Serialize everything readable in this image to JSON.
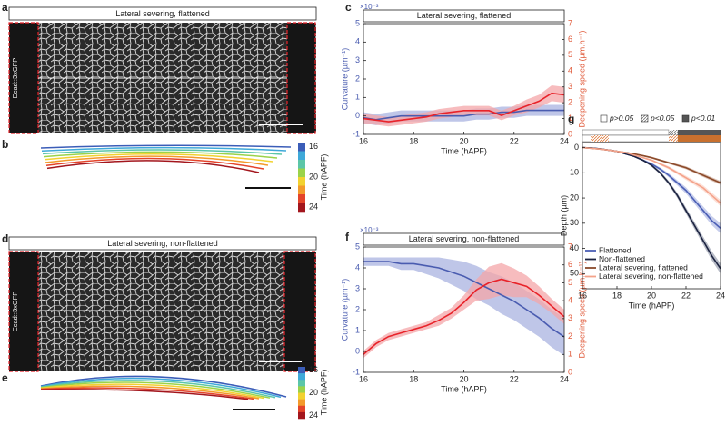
{
  "panels": {
    "a": {
      "label": "a",
      "title": "Lateral severing, flattened",
      "side_label": "Ecad::3xGFP"
    },
    "b": {
      "label": "b",
      "colorbar_label": "Time (hAPF)",
      "colorbar_ticks": [
        16,
        20,
        24
      ]
    },
    "d": {
      "label": "d",
      "title": "Lateral severing, non-flattened",
      "side_label": "Ecad::3xGFP"
    },
    "e": {
      "label": "e",
      "colorbar_label": "Time (hAPF)",
      "colorbar_ticks": [
        16,
        20,
        24
      ]
    }
  },
  "chart_data": [
    {
      "label": "c",
      "type": "line",
      "title": "Lateral severing, flattened",
      "x": [
        16,
        16.5,
        17,
        17.5,
        18,
        18.5,
        19,
        19.5,
        20,
        20.5,
        21,
        21.5,
        22,
        22.5,
        23,
        23.5,
        24
      ],
      "xlim": [
        16,
        24
      ],
      "xticks": [
        16,
        18,
        20,
        22,
        24
      ],
      "xlabel": "Time (hAPF)",
      "ylabel": "Curvature (µm⁻¹)",
      "y_multiplier": "×10⁻³",
      "ylim": [
        -1,
        5
      ],
      "yticks": [
        -1,
        0,
        1,
        2,
        3,
        4,
        5
      ],
      "y2label": "Deepening speed (µm.h⁻¹)",
      "y2lim": [
        0,
        7
      ],
      "y2ticks": [
        0,
        1,
        2,
        3,
        4,
        5,
        6,
        7
      ],
      "series": [
        {
          "color": "#4a5cb0",
          "band_color": "#aab3e0",
          "axis": "y",
          "values": [
            -0.1,
            -0.2,
            -0.1,
            0,
            0,
            0,
            0,
            0,
            0,
            0.1,
            0.1,
            0.2,
            0.2,
            0.3,
            0.3,
            0.3,
            0.3
          ],
          "errors": [
            0.3,
            0.3,
            0.3,
            0.3,
            0.3,
            0.3,
            0.3,
            0.3,
            0.3,
            0.3,
            0.3,
            0.3,
            0.3,
            0.3,
            0.3,
            0.3,
            0.3
          ]
        },
        {
          "color": "#e8232a",
          "band_color": "#f4a6a8",
          "axis": "y2",
          "values": [
            1.0,
            0.9,
            0.8,
            0.9,
            1.0,
            1.1,
            1.3,
            1.4,
            1.5,
            1.5,
            1.5,
            1.2,
            1.5,
            1.8,
            2.1,
            2.6,
            2.5
          ],
          "errors": [
            0.3,
            0.3,
            0.3,
            0.3,
            0.3,
            0.3,
            0.3,
            0.3,
            0.3,
            0.3,
            0.3,
            0.3,
            0.3,
            0.4,
            0.4,
            0.5,
            0.5
          ]
        }
      ]
    },
    {
      "label": "f",
      "type": "line",
      "title": "Lateral severing, non-flattened",
      "x": [
        16,
        16.5,
        17,
        17.5,
        18,
        18.5,
        19,
        19.5,
        20,
        20.5,
        21,
        21.5,
        22,
        22.5,
        23,
        23.5,
        24
      ],
      "xlim": [
        16,
        24
      ],
      "xticks": [
        16,
        18,
        20,
        22,
        24
      ],
      "xlabel": "Time (hAPF)",
      "ylabel": "Curvature (µm⁻¹)",
      "y_multiplier": "×10⁻³",
      "ylim": [
        -1,
        5
      ],
      "yticks": [
        -1,
        0,
        1,
        2,
        3,
        4,
        5
      ],
      "y2label": "Deepening speed (µm.h⁻¹)",
      "y2lim": [
        0,
        7
      ],
      "y2ticks": [
        0,
        1,
        2,
        3,
        4,
        5,
        6,
        7
      ],
      "series": [
        {
          "color": "#4a5cb0",
          "band_color": "#aab3e0",
          "axis": "y",
          "values": [
            4.3,
            4.3,
            4.3,
            4.2,
            4.2,
            4.1,
            4.0,
            3.8,
            3.6,
            3.3,
            3.0,
            2.7,
            2.4,
            2.0,
            1.6,
            1.1,
            0.7
          ],
          "errors": [
            0.2,
            0.2,
            0.2,
            0.3,
            0.3,
            0.4,
            0.5,
            0.6,
            0.7,
            0.8,
            0.8,
            0.9,
            0.9,
            0.9,
            0.9,
            0.9,
            0.9
          ]
        },
        {
          "color": "#e8232a",
          "band_color": "#f4a6a8",
          "axis": "y2",
          "values": [
            1.0,
            1.6,
            2.0,
            2.2,
            2.4,
            2.6,
            2.9,
            3.3,
            3.9,
            4.6,
            5.0,
            5.2,
            5.0,
            4.8,
            4.3,
            3.7,
            3.1
          ],
          "errors": [
            0.2,
            0.2,
            0.2,
            0.2,
            0.2,
            0.2,
            0.3,
            0.3,
            0.4,
            0.6,
            0.9,
            0.9,
            0.8,
            0.6,
            0.5,
            0.4,
            0.4
          ]
        }
      ]
    },
    {
      "label": "g",
      "type": "line",
      "significance_labels": [
        "p>0.05",
        "p<0.05",
        "p<0.01"
      ],
      "x": [
        16,
        16.5,
        17,
        17.5,
        18,
        18.5,
        19,
        19.5,
        20,
        20.5,
        21,
        21.5,
        22,
        22.5,
        23,
        23.5,
        24
      ],
      "xlim": [
        16,
        24
      ],
      "xticks": [
        16,
        18,
        20,
        22,
        24
      ],
      "xlabel": "Time (hAPF)",
      "ylabel": "Depth (µm)",
      "ylim": [
        -2,
        56
      ],
      "y_inverted": true,
      "yticks": [
        0,
        10,
        20,
        30,
        40,
        50
      ],
      "legend": "lower left",
      "series": [
        {
          "name": "Flattened",
          "color": "#4b5fb5",
          "band_color": "#b4bde6",
          "axis": "y",
          "values": [
            0,
            0.2,
            0.5,
            1,
            1.5,
            2.5,
            3.5,
            5,
            6.5,
            8.5,
            11,
            14,
            17,
            21,
            25,
            29,
            32
          ],
          "errors": [
            0,
            0,
            0.1,
            0.1,
            0.2,
            0.2,
            0.3,
            0.4,
            0.5,
            0.6,
            0.8,
            1,
            1.2,
            1.4,
            1.6,
            1.8,
            2
          ]
        },
        {
          "name": "Non-flattened",
          "color": "#1c2340",
          "band_color": "#a0a6b4",
          "axis": "y",
          "values": [
            0,
            0.2,
            0.5,
            1,
            1.5,
            2.5,
            3.5,
            5,
            7,
            10,
            14,
            19,
            25,
            31,
            37,
            43,
            48
          ],
          "errors": [
            0,
            0,
            0.1,
            0.1,
            0.2,
            0.2,
            0.3,
            0.4,
            0.5,
            0.6,
            0.8,
            1,
            1.2,
            1.4,
            1.6,
            1.8,
            2
          ]
        },
        {
          "name": "Lateral severing, flattened",
          "color": "#8b4a2a",
          "band_color": "#d2b0a0",
          "axis": "y",
          "values": [
            0,
            0.3,
            0.6,
            1,
            1.5,
            2,
            2.5,
            3.2,
            4,
            5,
            6,
            7,
            8,
            9.5,
            11,
            12.5,
            14
          ],
          "errors": [
            0,
            0,
            0.1,
            0.1,
            0.2,
            0.2,
            0.3,
            0.3,
            0.4,
            0.4,
            0.5,
            0.5,
            0.6,
            0.6,
            0.7,
            0.7,
            0.8
          ]
        },
        {
          "name": "Lateral severing, non-flattened",
          "color": "#f4a28a",
          "band_color": "#fbd6ca",
          "axis": "y",
          "values": [
            0,
            0.3,
            0.6,
            1,
            1.5,
            2,
            3,
            4,
            5,
            6.5,
            8,
            10,
            12,
            14,
            16,
            19,
            22
          ],
          "errors": [
            0,
            0,
            0.1,
            0.1,
            0.2,
            0.2,
            0.3,
            0.3,
            0.4,
            0.5,
            0.6,
            0.7,
            0.8,
            0.9,
            1,
            1.1,
            1.2
          ]
        }
      ]
    }
  ]
}
